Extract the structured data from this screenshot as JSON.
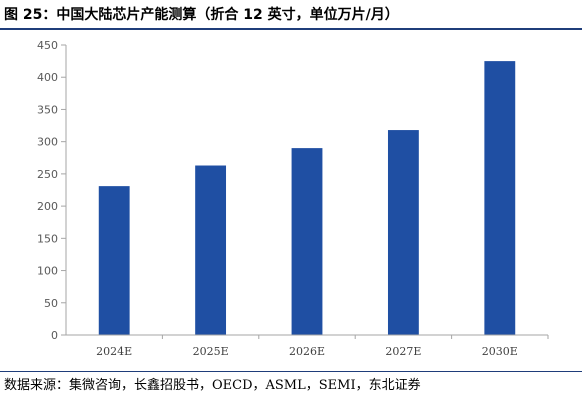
{
  "figure": {
    "title": "图 25：中国大陆芯片产能测算（折合 12 英寸，单位万片/月）",
    "source": "数据来源：集微咨询，长鑫招股书，OECD，ASML，SEMI，东北证券"
  },
  "chart_data": {
    "type": "bar",
    "title": "",
    "xlabel": "",
    "ylabel": "",
    "categories": [
      "2024E",
      "2025E",
      "2026E",
      "2027E",
      "2030E"
    ],
    "values": [
      231,
      263,
      290,
      318,
      425
    ],
    "ylim": [
      0,
      450
    ],
    "yticks": [
      0,
      50,
      100,
      150,
      200,
      250,
      300,
      350,
      400,
      450
    ],
    "grid": false,
    "legend": "none",
    "bar_color": "#1f4fa3",
    "axis_color": "#a6a6a6"
  }
}
